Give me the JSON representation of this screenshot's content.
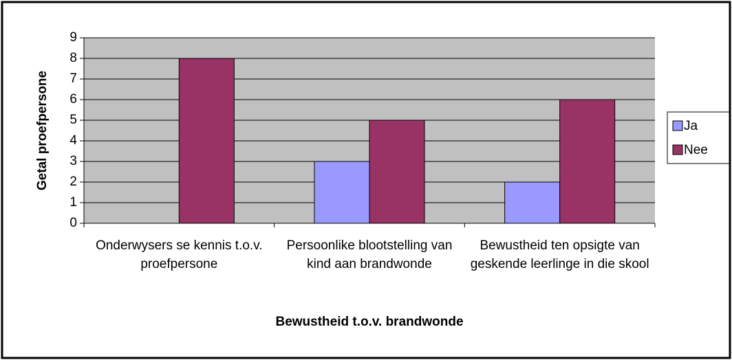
{
  "chart_data": {
    "type": "bar",
    "x_label": "Bewustheid t.o.v. brandwonde",
    "y_label": "Getal proefpersone",
    "categories": [
      "Onderwysers se kennis t.o.v. proefpersone",
      "Persoonlike blootstelling van kind aan brandwonde",
      "Bewustheid ten opsigte van geskende leerlinge in die skool"
    ],
    "series": [
      {
        "name": "Ja",
        "color": "#9999ff",
        "values": [
          0,
          3,
          2
        ]
      },
      {
        "name": "Nee",
        "color": "#993366",
        "values": [
          8,
          5,
          6
        ]
      }
    ],
    "ylim": [
      0,
      9
    ],
    "yticks": [
      0,
      1,
      2,
      3,
      4,
      5,
      6,
      7,
      8,
      9
    ],
    "grid": true,
    "plot_background": "#c0c0c0",
    "legend": "right"
  }
}
